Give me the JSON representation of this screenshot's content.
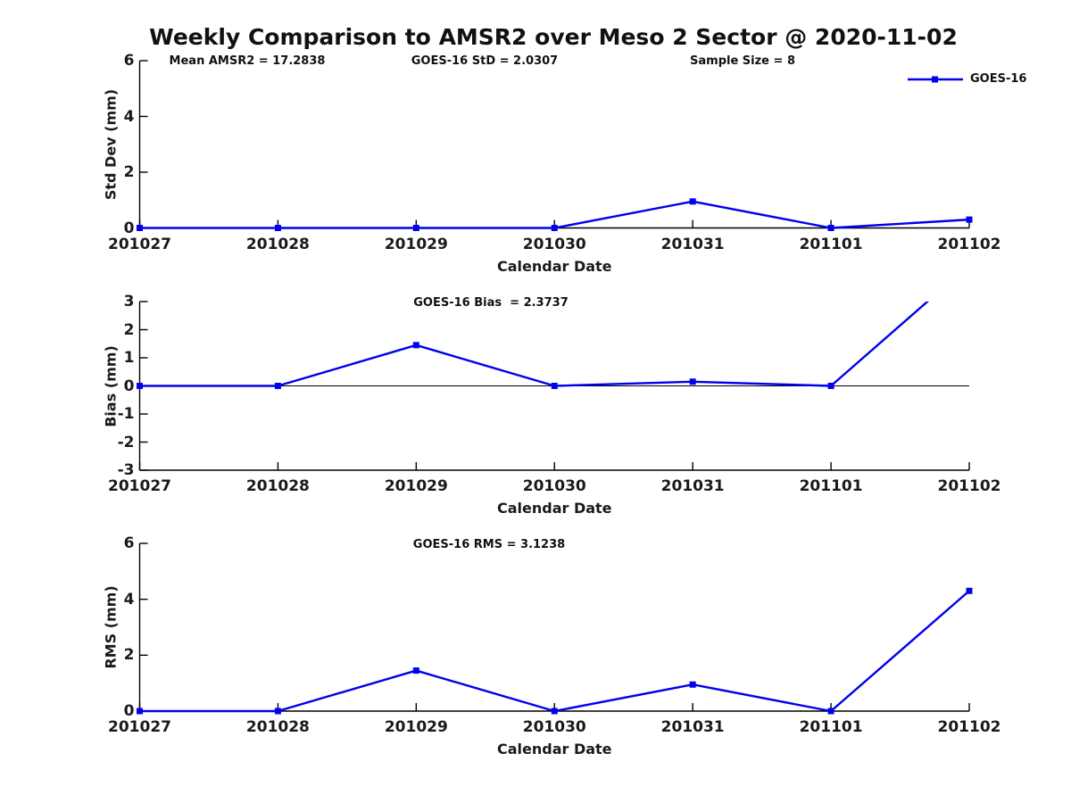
{
  "figure": {
    "title": "Weekly Comparison to AMSR2 over Meso 2 Sector @ 2020-11-02",
    "stats": [
      {
        "label": "Mean AMSR2 = 17.2838"
      },
      {
        "label": "GOES-16 StD = 2.0307"
      },
      {
        "label": "Sample Size = 8"
      }
    ],
    "legend": {
      "label": "GOES-16",
      "marker": "square"
    }
  },
  "colors": {
    "line": "#0000ee",
    "axis": "#000000",
    "text": "#1a1a1a"
  },
  "chart_data": [
    {
      "type": "line",
      "title": "",
      "ylabel": "Std Dev (mm)",
      "xlabel": "Calendar Date",
      "categories": [
        "201027",
        "201028",
        "201029",
        "201030",
        "201031",
        "201101",
        "201102"
      ],
      "series": [
        {
          "name": "GOES-16",
          "color": "#0000ee",
          "values": [
            0,
            0,
            0,
            0,
            0.95,
            0,
            0.3
          ]
        }
      ],
      "ylim": [
        0,
        6
      ],
      "yticks": [
        0,
        2,
        4,
        6
      ],
      "zero_line": false,
      "grid": false,
      "legend_position": "top-right",
      "annotations": [
        "Mean AMSR2 = 17.2838",
        "GOES-16 StD = 2.0307",
        "Sample Size = 8"
      ]
    },
    {
      "type": "line",
      "title": "GOES-16 Bias  = 2.3737",
      "ylabel": "Bias (mm)",
      "xlabel": "Calendar Date",
      "categories": [
        "201027",
        "201028",
        "201029",
        "201030",
        "201031",
        "201101",
        "201102"
      ],
      "series": [
        {
          "name": "GOES-16",
          "color": "#0000ee",
          "values": [
            0,
            0,
            1.45,
            0,
            0.15,
            0,
            4.3
          ]
        }
      ],
      "ylim": [
        -3,
        3
      ],
      "yticks": [
        -3,
        -2,
        -1,
        0,
        1,
        2,
        3
      ],
      "zero_line": true,
      "grid": false,
      "note": "last point exceeds ylim and is clipped at top of axes"
    },
    {
      "type": "line",
      "title": "GOES-16 RMS = 3.1238",
      "ylabel": "RMS (mm)",
      "xlabel": "Calendar Date",
      "categories": [
        "201027",
        "201028",
        "201029",
        "201030",
        "201031",
        "201101",
        "201102"
      ],
      "series": [
        {
          "name": "GOES-16",
          "color": "#0000ee",
          "values": [
            0,
            0,
            1.45,
            0,
            0.95,
            0,
            4.3
          ]
        }
      ],
      "ylim": [
        0,
        6
      ],
      "yticks": [
        0,
        2,
        4,
        6
      ],
      "zero_line": false,
      "grid": false
    }
  ]
}
